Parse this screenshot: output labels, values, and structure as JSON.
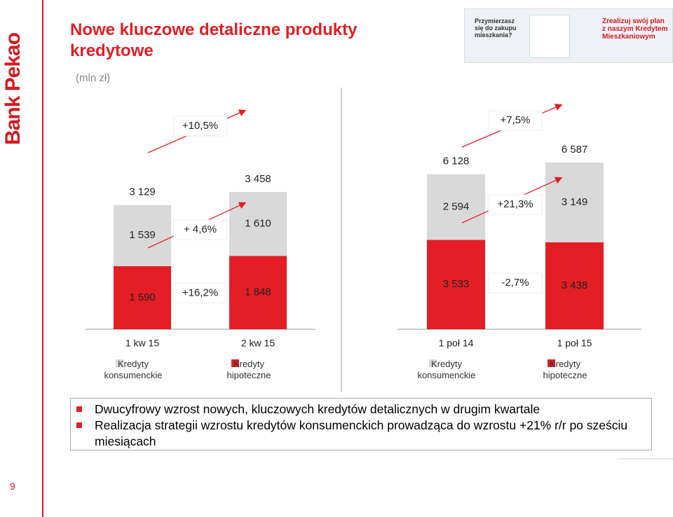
{
  "logo": "Bank Pekao",
  "title": "Nowe kluczowe detaliczne produkty kredytowe",
  "unit": "(mln zł)",
  "ad": {
    "question": "Przymierzasz się do zakupu mieszkania?",
    "offer": "Zrealizuj swój plan z naszym Kredytem Mieszkaniowym"
  },
  "bullets": [
    "Dwucyfrowy wzrost nowych, kluczowych kredytów detalicznych w drugim kwartale",
    "Realizacja strategii wzrostu kredytów konsumenckich prowadząca do wzrostu +21% r/r po sześciu miesiącach"
  ],
  "page_number": "9",
  "chart_data": [
    {
      "type": "stacked-bar",
      "categories": [
        "1 kw 15",
        "2 kw 15"
      ],
      "series": [
        {
          "name": "Kredyty hipoteczne",
          "color": "#e31e24",
          "values": [
            1590,
            1848
          ],
          "value_labels": [
            "1 590",
            "1 848"
          ]
        },
        {
          "name": "Kredyty konsumenckie",
          "color": "#d9d9d9",
          "values": [
            1539,
            1610
          ],
          "value_labels": [
            "1 539",
            "1 610"
          ]
        }
      ],
      "totals": [
        3129,
        3458
      ],
      "total_labels": [
        "3 129",
        "3 458"
      ],
      "annotations": [
        "+10,5%",
        "+16,2%",
        "+ 4,6%"
      ]
    },
    {
      "type": "stacked-bar",
      "categories": [
        "1 poł 14",
        "1 poł 15"
      ],
      "series": [
        {
          "name": "Kredyty hipoteczne",
          "color": "#e31e24",
          "values": [
            3533,
            3438
          ],
          "value_labels": [
            "3 533",
            "3 438"
          ]
        },
        {
          "name": "Kredyty konsumenckie",
          "color": "#d9d9d9",
          "values": [
            2594,
            3149
          ],
          "value_labels": [
            "2 594",
            "3 149"
          ]
        }
      ],
      "totals": [
        6128,
        6587
      ],
      "total_labels": [
        "6 128",
        "6 587"
      ],
      "annotations": [
        "+7,5%",
        "-2,7%",
        "+21,3%"
      ]
    }
  ]
}
